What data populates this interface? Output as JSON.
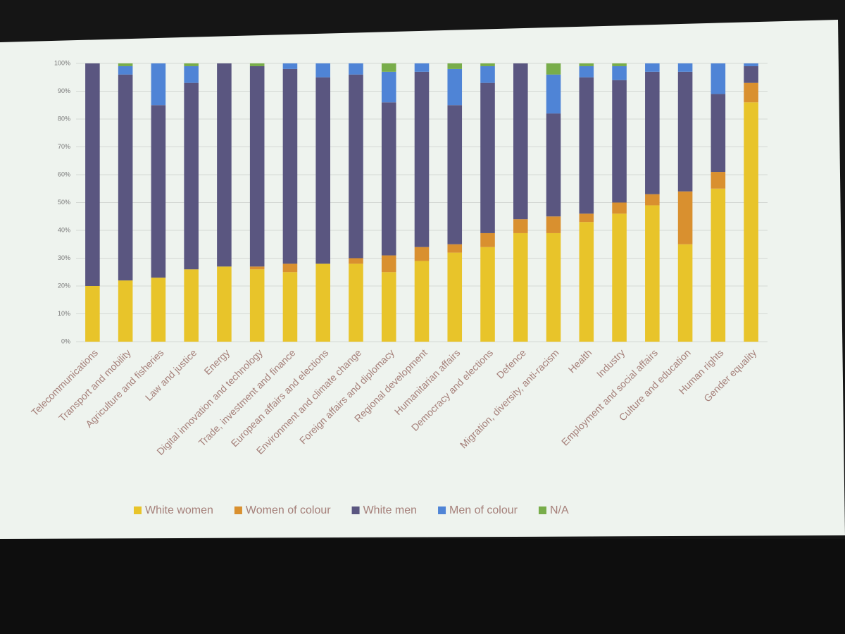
{
  "chart_data": {
    "type": "stacked_bar",
    "categories": [
      "Telecommunications",
      "Transport and mobility",
      "Agriculture and fisheries",
      "Law and justice",
      "Energy",
      "Digital innovation and technology",
      "Trade, investment and finance",
      "European affairs and elections",
      "Environment and climate change",
      "Foreign affairs and diplomacy",
      "Regional development",
      "Humanitarian affairs",
      "Democracy and elections",
      "Defence",
      "Migration, diversity, anti-racism",
      "Health",
      "Industry",
      "Employment and social affairs",
      "Culture and education",
      "Human rights",
      "Gender equality"
    ],
    "series": [
      {
        "name": "White women",
        "color": "#e8c42a",
        "values": [
          20,
          22,
          23,
          26,
          27,
          26,
          25,
          28,
          28,
          25,
          29,
          32,
          34,
          39,
          39,
          43,
          46,
          49,
          35,
          55,
          86
        ]
      },
      {
        "name": "Women of colour",
        "color": "#d9902f",
        "values": [
          0,
          0,
          0,
          0,
          0,
          1,
          3,
          0,
          2,
          6,
          5,
          3,
          5,
          5,
          6,
          3,
          4,
          4,
          19,
          6,
          7
        ]
      },
      {
        "name": "White men",
        "color": "#5a5680",
        "values": [
          80,
          74,
          62,
          67,
          73,
          72,
          70,
          67,
          66,
          55,
          63,
          50,
          54,
          56,
          37,
          49,
          44,
          44,
          43,
          28,
          6
        ]
      },
      {
        "name": "Men of colour",
        "color": "#4f84d6",
        "values": [
          0,
          3,
          15,
          6,
          0,
          0,
          2,
          5,
          4,
          11,
          3,
          13,
          6,
          0,
          14,
          4,
          5,
          3,
          3,
          11,
          1
        ]
      },
      {
        "name": "N/A",
        "color": "#78ad4a",
        "values": [
          0,
          1,
          0,
          1,
          0,
          1,
          0,
          0,
          0,
          3,
          0,
          2,
          1,
          0,
          4,
          1,
          1,
          0,
          0,
          0,
          0
        ]
      }
    ],
    "ylim": [
      0,
      100
    ],
    "yticks": [
      {
        "value": 0,
        "label": "0%"
      },
      {
        "value": 10,
        "label": "10%"
      },
      {
        "value": 20,
        "label": "20%"
      },
      {
        "value": 30,
        "label": "30%"
      },
      {
        "value": 40,
        "label": "40%"
      },
      {
        "value": 50,
        "label": "50%"
      },
      {
        "value": 60,
        "label": "60%"
      },
      {
        "value": 70,
        "label": "70%"
      },
      {
        "value": 80,
        "label": "80%"
      },
      {
        "value": 90,
        "label": "90%"
      },
      {
        "value": 100,
        "label": "100%"
      }
    ],
    "grid": true,
    "legend": "bottom"
  }
}
